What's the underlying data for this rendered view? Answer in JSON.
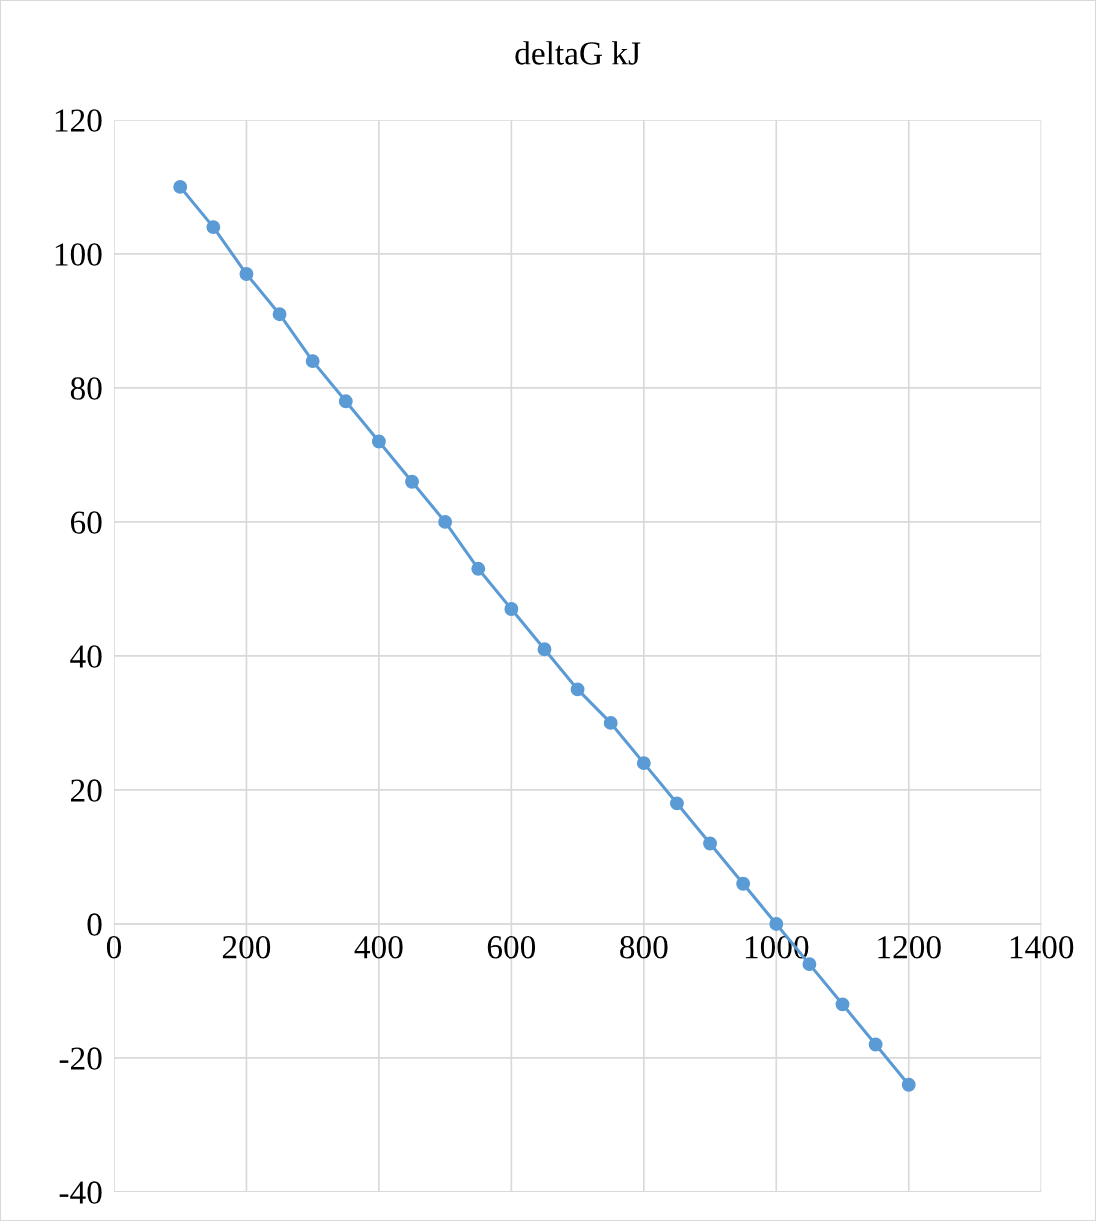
{
  "chart_data": {
    "type": "line",
    "title": "deltaG kJ",
    "x": [
      100,
      150,
      200,
      250,
      300,
      350,
      400,
      450,
      500,
      550,
      600,
      650,
      700,
      750,
      800,
      850,
      900,
      950,
      1000,
      1050,
      1100,
      1150,
      1200
    ],
    "series": [
      {
        "color": "#5b9bd5",
        "values": [
          110,
          104,
          97,
          91,
          84,
          78,
          72,
          66,
          60,
          53,
          47,
          41,
          35,
          30,
          24,
          18,
          12,
          6,
          0,
          -6,
          -12,
          -18,
          -24
        ]
      }
    ],
    "xlim": [
      0,
      1400
    ],
    "xticks": [
      0,
      200,
      400,
      600,
      800,
      1000,
      1200,
      1400
    ],
    "ylim": [
      -40,
      120
    ],
    "yticks": [
      -40,
      -20,
      0,
      20,
      40,
      60,
      80,
      100,
      120
    ],
    "grid": true,
    "marker": "circle",
    "line_style": "solid"
  }
}
